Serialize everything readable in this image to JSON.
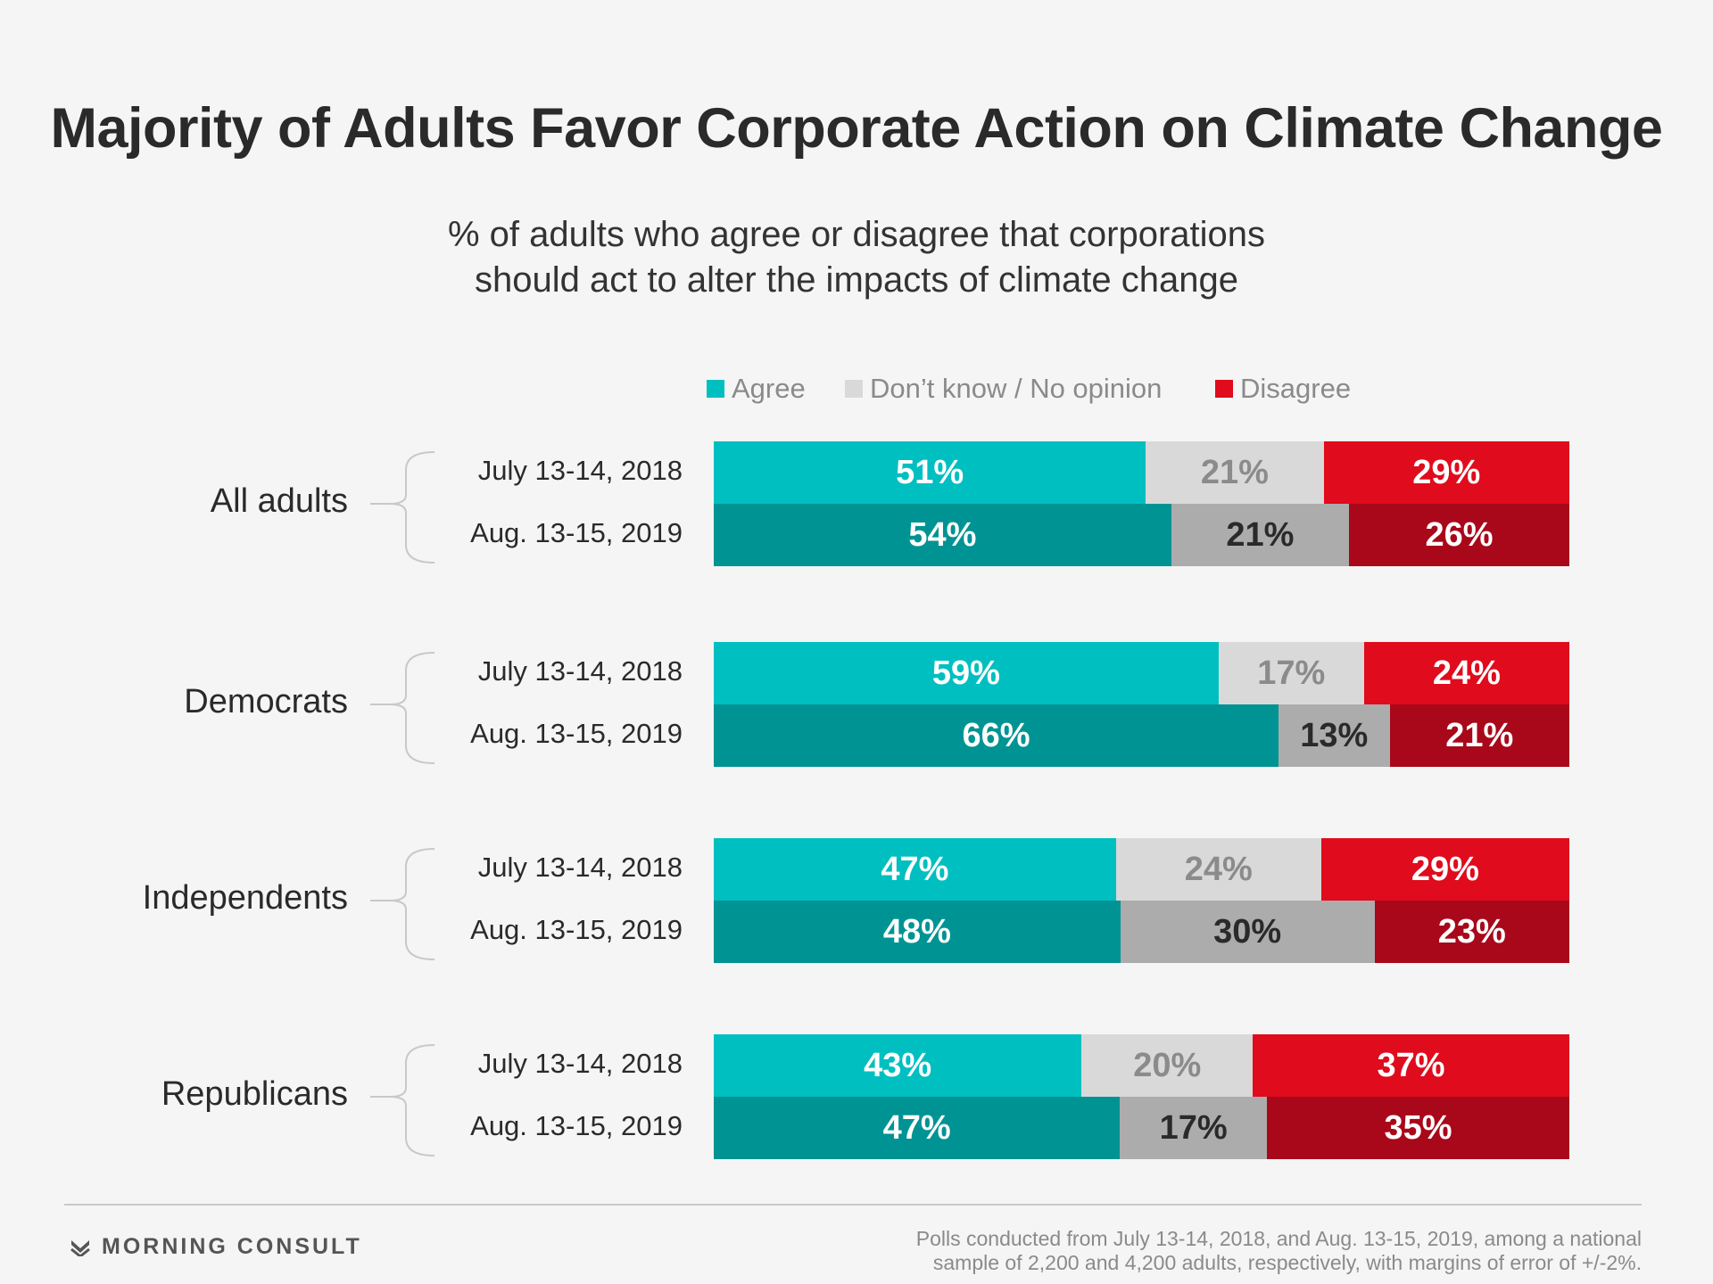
{
  "header": {
    "title": "Majority of Adults Favor Corporate Action on Climate Change",
    "subtitle_line1": "% of adults who agree or disagree that corporations",
    "subtitle_line2": "should act to alter the impacts of climate change"
  },
  "legend": [
    {
      "label": "Agree",
      "color": "#00bfc0"
    },
    {
      "label": "Don’t know / No opinion",
      "color": "#d9d9d9"
    },
    {
      "label": "Disagree",
      "color": "#e00b1c"
    }
  ],
  "chart_data": {
    "type": "bar",
    "orientation": "horizontal",
    "stacked": true,
    "title": "Majority of Adults Favor Corporate Action on Climate Change",
    "subtitle": "% of adults who agree or disagree that corporations should act to alter the impacts of climate change",
    "categories": [
      "All adults",
      "Democrats",
      "Independents",
      "Republicans"
    ],
    "periods": [
      "July 13-14, 2018",
      "Aug. 13-15, 2019"
    ],
    "series_names": [
      "Agree",
      "Don’t know / No opinion",
      "Disagree"
    ],
    "groups": [
      {
        "label": "All adults",
        "rows": [
          {
            "period": "July 13-14, 2018",
            "values": [
              51,
              21,
              29
            ],
            "labels": [
              "51%",
              "21%",
              "29%"
            ]
          },
          {
            "period": "Aug. 13-15, 2019",
            "values": [
              54,
              21,
              26
            ],
            "labels": [
              "54%",
              "21%",
              "26%"
            ]
          }
        ]
      },
      {
        "label": "Democrats",
        "rows": [
          {
            "period": "July 13-14, 2018",
            "values": [
              59,
              17,
              24
            ],
            "labels": [
              "59%",
              "17%",
              "24%"
            ]
          },
          {
            "period": "Aug. 13-15, 2019",
            "values": [
              66,
              13,
              21
            ],
            "labels": [
              "66%",
              "13%",
              "21%"
            ]
          }
        ]
      },
      {
        "label": "Independents",
        "rows": [
          {
            "period": "July 13-14, 2018",
            "values": [
              47,
              24,
              29
            ],
            "labels": [
              "47%",
              "24%",
              "29%"
            ]
          },
          {
            "period": "Aug. 13-15, 2019",
            "values": [
              48,
              30,
              23
            ],
            "labels": [
              "48%",
              "30%",
              "23%"
            ]
          }
        ]
      },
      {
        "label": "Republicans",
        "rows": [
          {
            "period": "July 13-14, 2018",
            "values": [
              43,
              20,
              37
            ],
            "labels": [
              "43%",
              "20%",
              "37%"
            ]
          },
          {
            "period": "Aug. 13-15, 2019",
            "values": [
              47,
              17,
              35
            ],
            "labels": [
              "47%",
              "17%",
              "35%"
            ]
          }
        ]
      }
    ],
    "colors": {
      "2018": [
        "#00bfc0",
        "#d9d9d9",
        "#e00b1c"
      ],
      "2019": [
        "#009393",
        "#acacac",
        "#a8081a"
      ]
    },
    "legend_position": "top",
    "grid": false
  },
  "footer": {
    "brand": "MORNING CONSULT",
    "brand_icon": "morning-consult-logo-icon",
    "note_line1": "Polls conducted from July 13-14, 2018, and Aug. 13-15, 2019, among a national",
    "note_line2": "sample of 2,200 and 4,200 adults, respectively, with margins of error of +/-2%."
  }
}
